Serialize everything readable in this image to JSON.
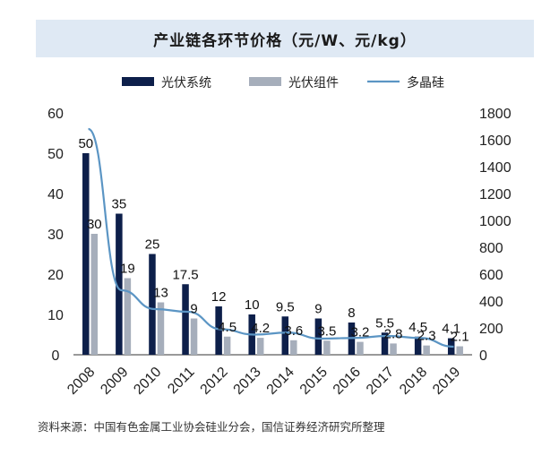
{
  "chart_data": {
    "type": "bar",
    "title": "产业链各环节价格（元/W、元/kg）",
    "categories": [
      "2008",
      "2009",
      "2010",
      "2011",
      "2012",
      "2013",
      "2014",
      "2015",
      "2016",
      "2017",
      "2018",
      "2019"
    ],
    "series": [
      {
        "name": "光伏系统",
        "type": "bar",
        "axis": "left",
        "color": "#0d1f4a",
        "values": [
          50,
          35,
          25,
          17.5,
          12,
          10,
          9.5,
          9,
          8,
          5.5,
          4.5,
          4.1
        ],
        "labels": [
          "50",
          "35",
          "25",
          "17.5",
          "12",
          "10",
          "9.5",
          "9",
          "8",
          "5.5",
          "4.5",
          "4.1"
        ]
      },
      {
        "name": "光伏组件",
        "type": "bar",
        "axis": "left",
        "color": "#a6aebb",
        "values": [
          30,
          19,
          13,
          9,
          4.5,
          4.2,
          3.6,
          3.5,
          3.2,
          2.8,
          2.3,
          2.1
        ],
        "labels": [
          "30",
          "19",
          "13",
          "9",
          "4.5",
          "4.2",
          "3.6",
          "3.5",
          "3.2",
          "2.8",
          "2.3",
          "2.1"
        ]
      },
      {
        "name": "多晶硅",
        "type": "line",
        "axis": "right",
        "color": "#5b95c4",
        "values": [
          1680,
          480,
          340,
          320,
          190,
          150,
          165,
          120,
          125,
          140,
          125,
          60
        ]
      }
    ],
    "yleft": {
      "lim": [
        0,
        60
      ],
      "ticks": [
        "0",
        "10",
        "20",
        "30",
        "40",
        "50",
        "60"
      ]
    },
    "yright": {
      "lim": [
        0,
        1800
      ],
      "ticks": [
        "0",
        "200",
        "400",
        "600",
        "800",
        "1000",
        "1200",
        "1400",
        "1600",
        "1800"
      ]
    },
    "legend": "top-center",
    "grid": false
  },
  "source": "资料来源：中国有色金属工业协会硅业分会，国信证券经济研究所整理"
}
